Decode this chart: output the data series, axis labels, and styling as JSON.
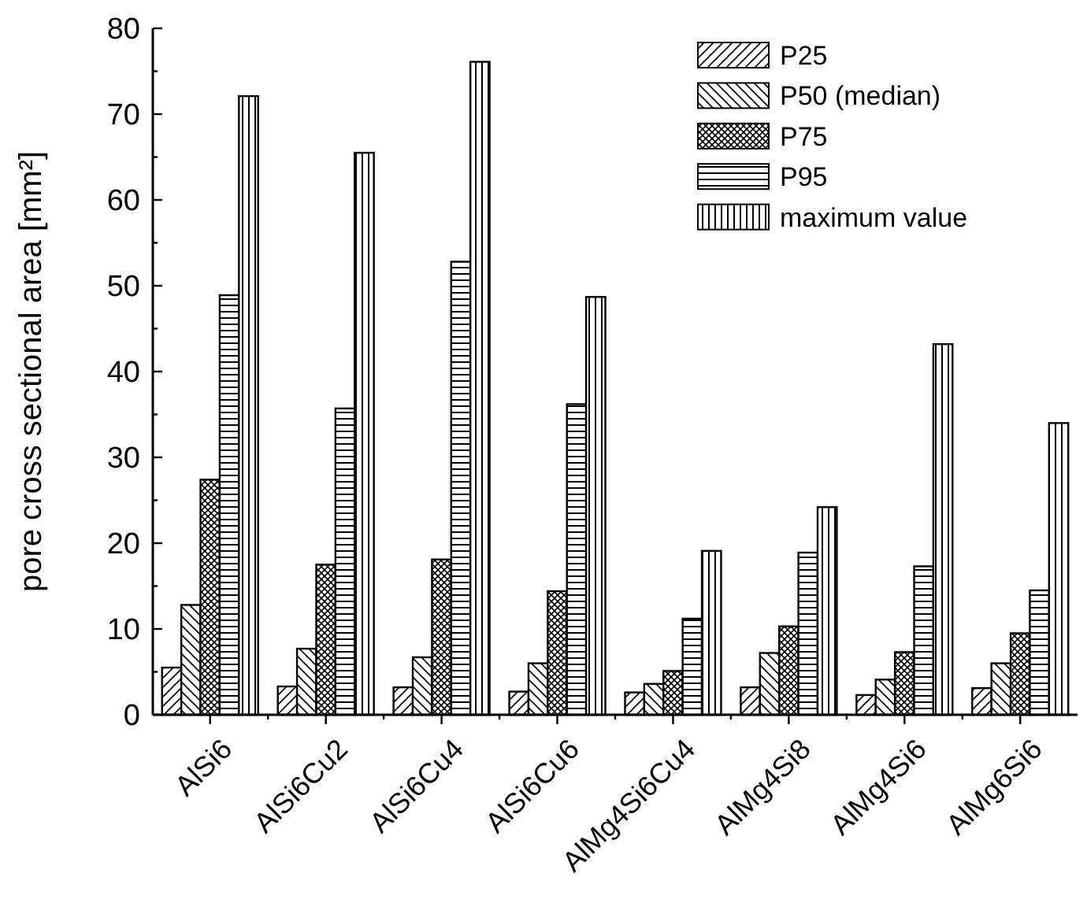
{
  "chart_data": {
    "type": "bar",
    "ylabel": "pore cross sectional area [mm²]",
    "categories": [
      "AlSi6",
      "AlSi6Cu2",
      "AlSi6Cu4",
      "AlSi6Cu6",
      "AlMg4Si6Cu4",
      "AlMg4Si8",
      "AlMg4Si6",
      "AlMg6Si6"
    ],
    "series": [
      {
        "name": "P25",
        "color": "#000000",
        "values": [
          5.5,
          3.3,
          3.2,
          2.7,
          2.6,
          3.2,
          2.3,
          3.1
        ]
      },
      {
        "name": "P50 (median)",
        "color": "#000000",
        "values": [
          12.8,
          7.7,
          6.7,
          6.0,
          3.6,
          7.2,
          4.1,
          6.0
        ]
      },
      {
        "name": "P75",
        "color": "#000000",
        "values": [
          27.4,
          17.5,
          18.1,
          14.4,
          5.1,
          10.3,
          7.3,
          9.5
        ]
      },
      {
        "name": "P95",
        "color": "#000000",
        "values": [
          48.9,
          35.7,
          52.8,
          36.2,
          11.2,
          18.9,
          17.3,
          14.5
        ]
      },
      {
        "name": "maximum value",
        "color": "#000000",
        "values": [
          72.1,
          65.5,
          76.1,
          48.7,
          19.1,
          24.2,
          43.2,
          34.0
        ]
      }
    ],
    "ylim": [
      0,
      80
    ],
    "yticks": [
      0,
      {
        "value": 5,
        "label": null
      },
      10,
      {
        "value": 15,
        "label": null
      },
      20,
      {
        "value": 25,
        "label": null
      },
      30,
      {
        "value": 35,
        "label": null
      },
      40,
      {
        "value": 45,
        "label": null
      },
      50,
      {
        "value": 55,
        "label": null
      },
      60,
      {
        "value": 65,
        "label": null
      },
      70,
      {
        "value": 75,
        "label": null
      },
      80
    ],
    "grid": false,
    "legend": "top right"
  }
}
